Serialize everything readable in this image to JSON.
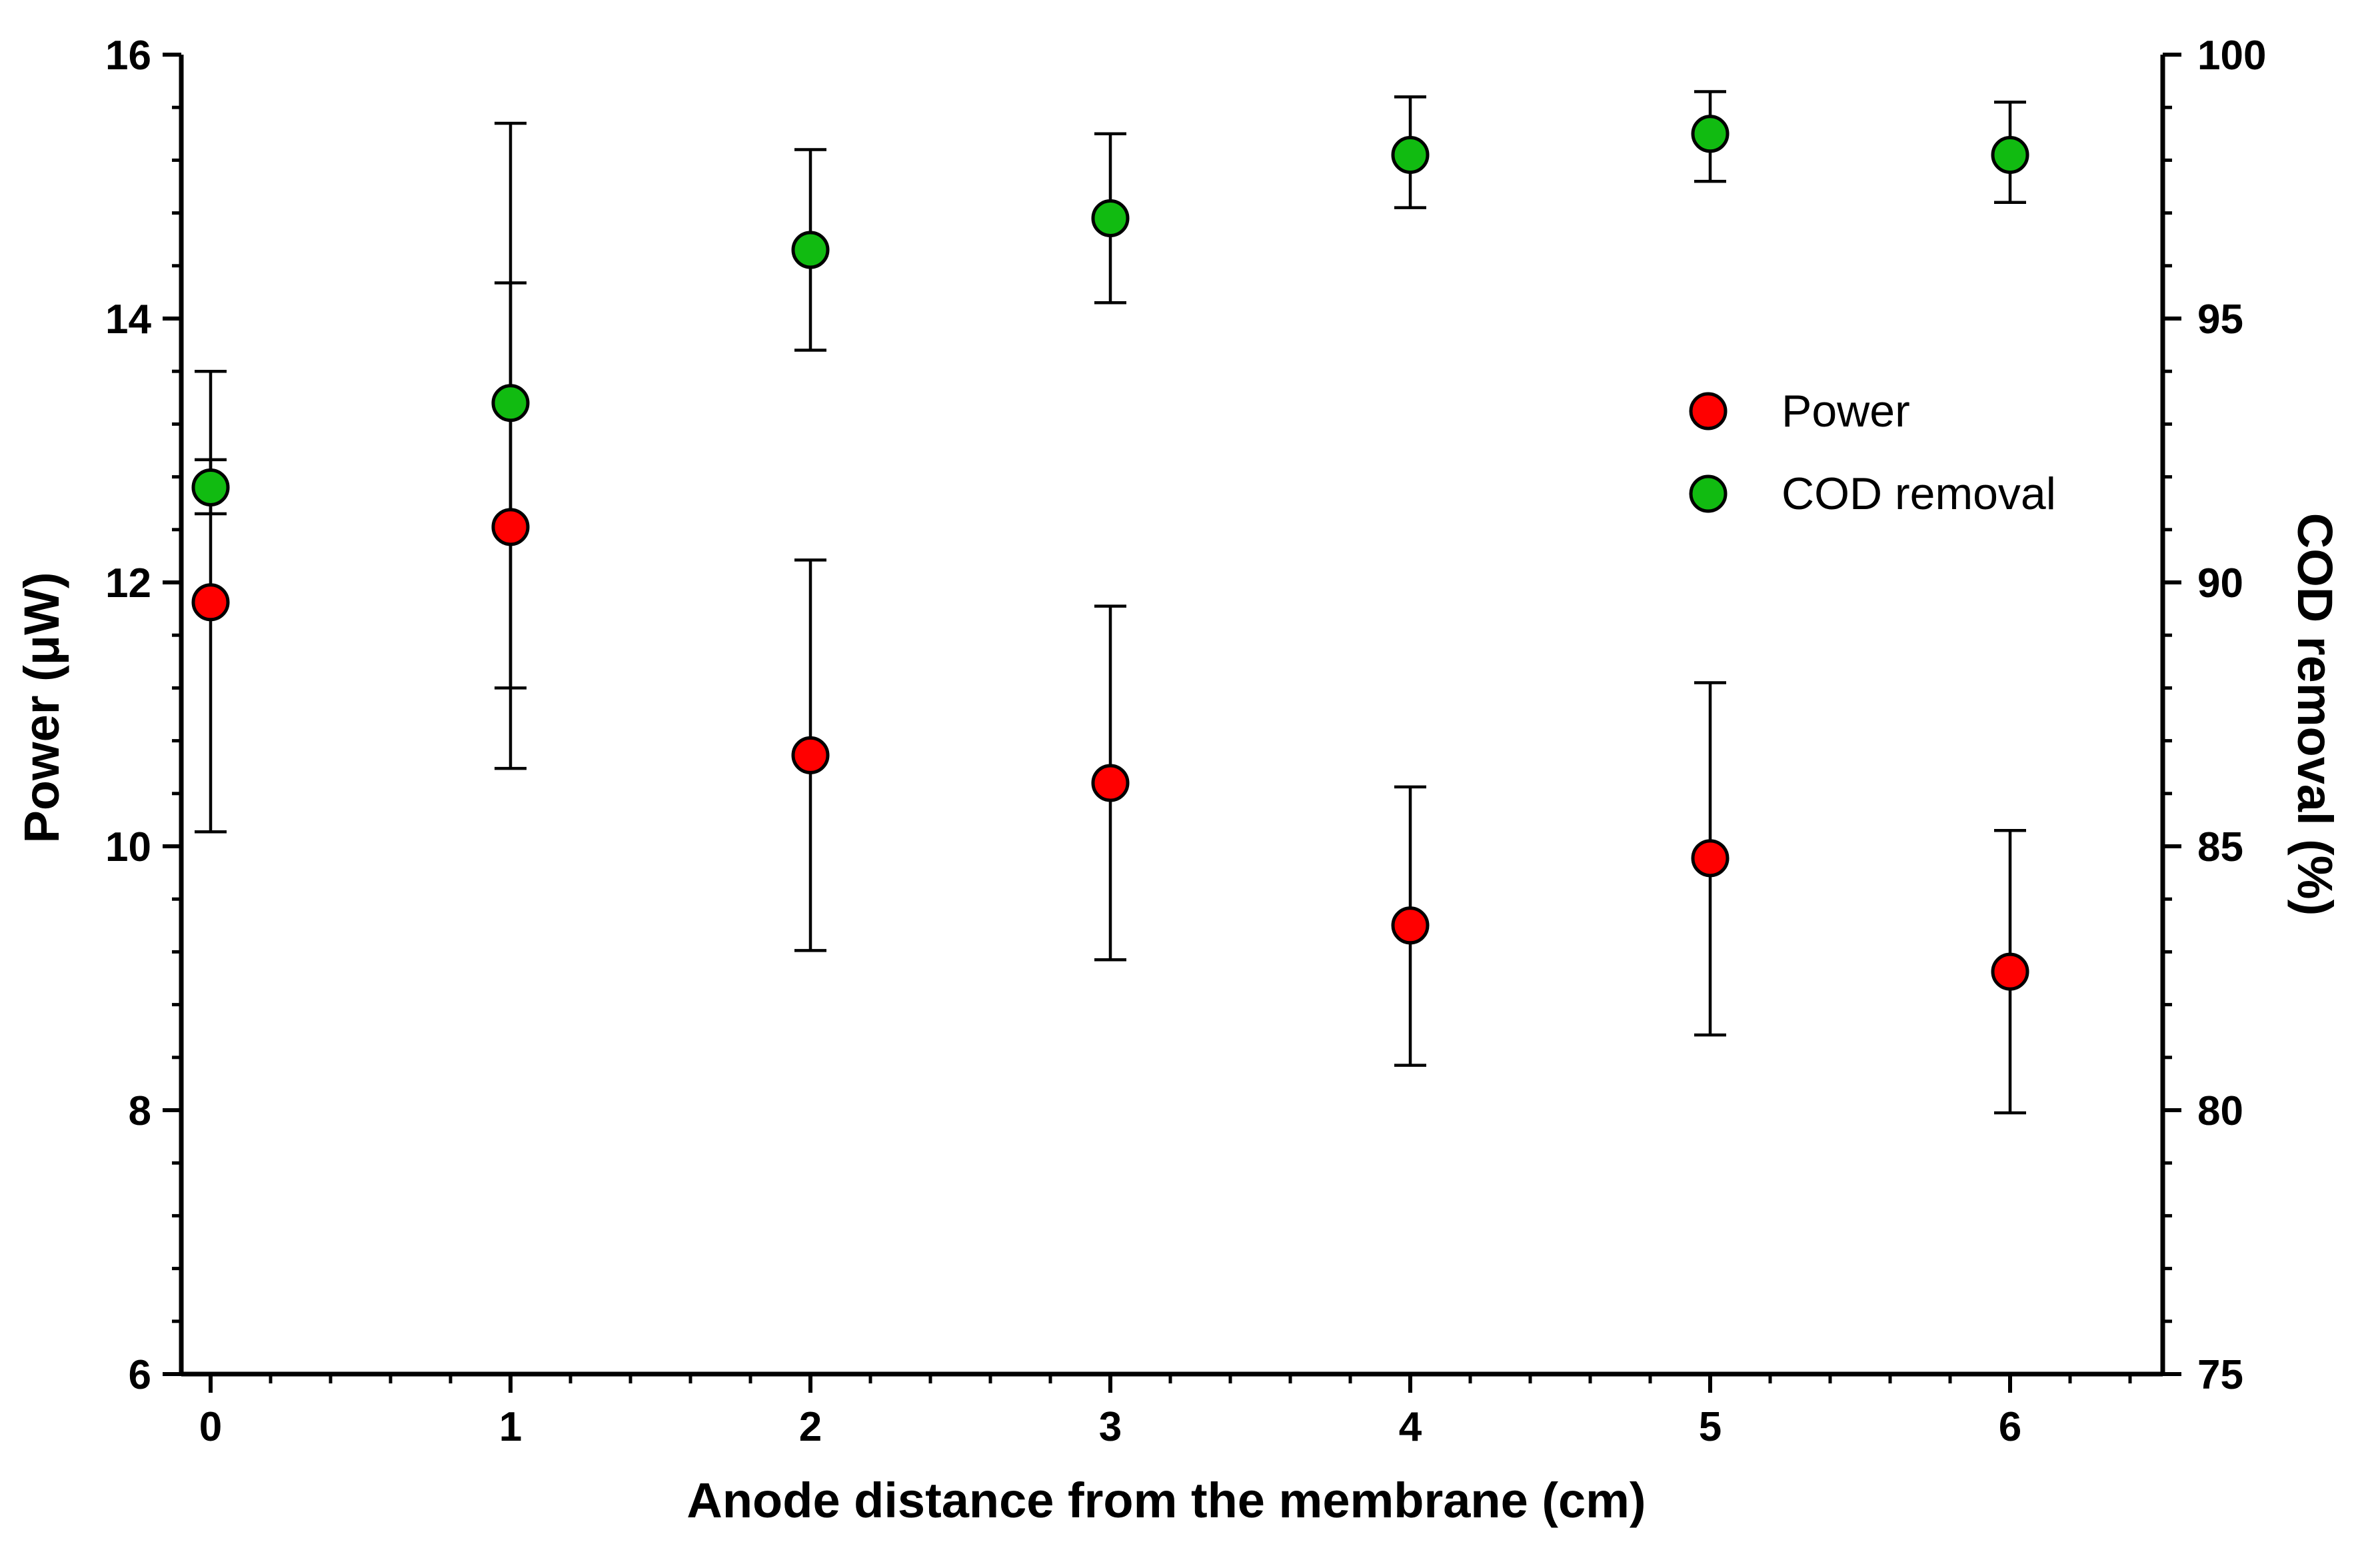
{
  "chart_data": {
    "type": "scatter",
    "title": "",
    "xlabel": "Anode distance from the membrane (cm)",
    "ylabel": "Power (μW)",
    "y2label": "COD removal (%)",
    "x": [
      0,
      1,
      2,
      3,
      4,
      5,
      6
    ],
    "xlim": [
      -0.1,
      6.5
    ],
    "ylim": [
      6,
      16
    ],
    "y2lim": [
      75,
      100
    ],
    "xticks": [
      0,
      1,
      2,
      3,
      4,
      5,
      6
    ],
    "yticks": [
      6,
      8,
      10,
      12,
      14,
      16
    ],
    "y2ticks": [
      75,
      80,
      85,
      90,
      95,
      100
    ],
    "legend_position": "right",
    "series": [
      {
        "name": "Power",
        "axis": "left",
        "color": "#ff0000",
        "values": [
          11.85,
          12.42,
          10.69,
          10.48,
          9.4,
          9.91,
          9.05
        ],
        "err_low": [
          10.11,
          10.59,
          9.21,
          9.14,
          8.34,
          8.57,
          7.98
        ],
        "err_high": [
          12.93,
          14.27,
          12.17,
          11.82,
          10.45,
          11.24,
          10.12
        ]
      },
      {
        "name": "COD removal",
        "axis": "right",
        "color": "#11bb11",
        "values": [
          91.8,
          93.4,
          96.3,
          96.9,
          98.1,
          98.5,
          98.1
        ],
        "err_low": [
          91.3,
          88.0,
          94.4,
          95.3,
          97.1,
          97.6,
          97.2
        ],
        "err_high": [
          94.0,
          98.7,
          98.2,
          98.5,
          99.2,
          99.3,
          99.1
        ]
      }
    ]
  }
}
